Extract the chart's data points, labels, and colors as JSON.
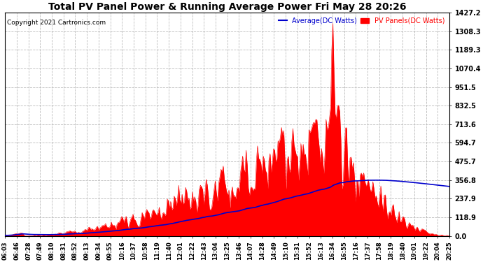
{
  "title": "Total PV Panel Power & Running Average Power Fri May 28 20:26",
  "copyright": "Copyright 2021 Cartronics.com",
  "legend_avg": "Average(DC Watts)",
  "legend_pv": "PV Panels(DC Watts)",
  "yticks": [
    0.0,
    118.9,
    237.9,
    356.8,
    475.7,
    594.7,
    713.6,
    832.5,
    951.5,
    1070.4,
    1189.3,
    1308.3,
    1427.2
  ],
  "ymax": 1427.2,
  "fill_color": "#ff0000",
  "avg_color": "#0000cd",
  "bg_color": "#ffffff",
  "grid_color": "#cccccc",
  "title_color": "#000000",
  "copyright_color": "#000000",
  "avg_legend_color": "#0000cd",
  "pv_legend_color": "#ff0000",
  "xtick_labels": [
    "06:03",
    "06:46",
    "07:28",
    "07:49",
    "08:10",
    "08:31",
    "08:52",
    "09:13",
    "09:34",
    "09:55",
    "10:16",
    "10:37",
    "10:58",
    "11:19",
    "11:40",
    "12:01",
    "12:22",
    "12:43",
    "13:04",
    "13:25",
    "13:46",
    "14:07",
    "14:28",
    "14:49",
    "15:10",
    "15:31",
    "15:52",
    "16:13",
    "16:34",
    "16:55",
    "17:16",
    "17:37",
    "17:58",
    "18:19",
    "18:40",
    "19:01",
    "19:22",
    "20:04",
    "20:25"
  ]
}
